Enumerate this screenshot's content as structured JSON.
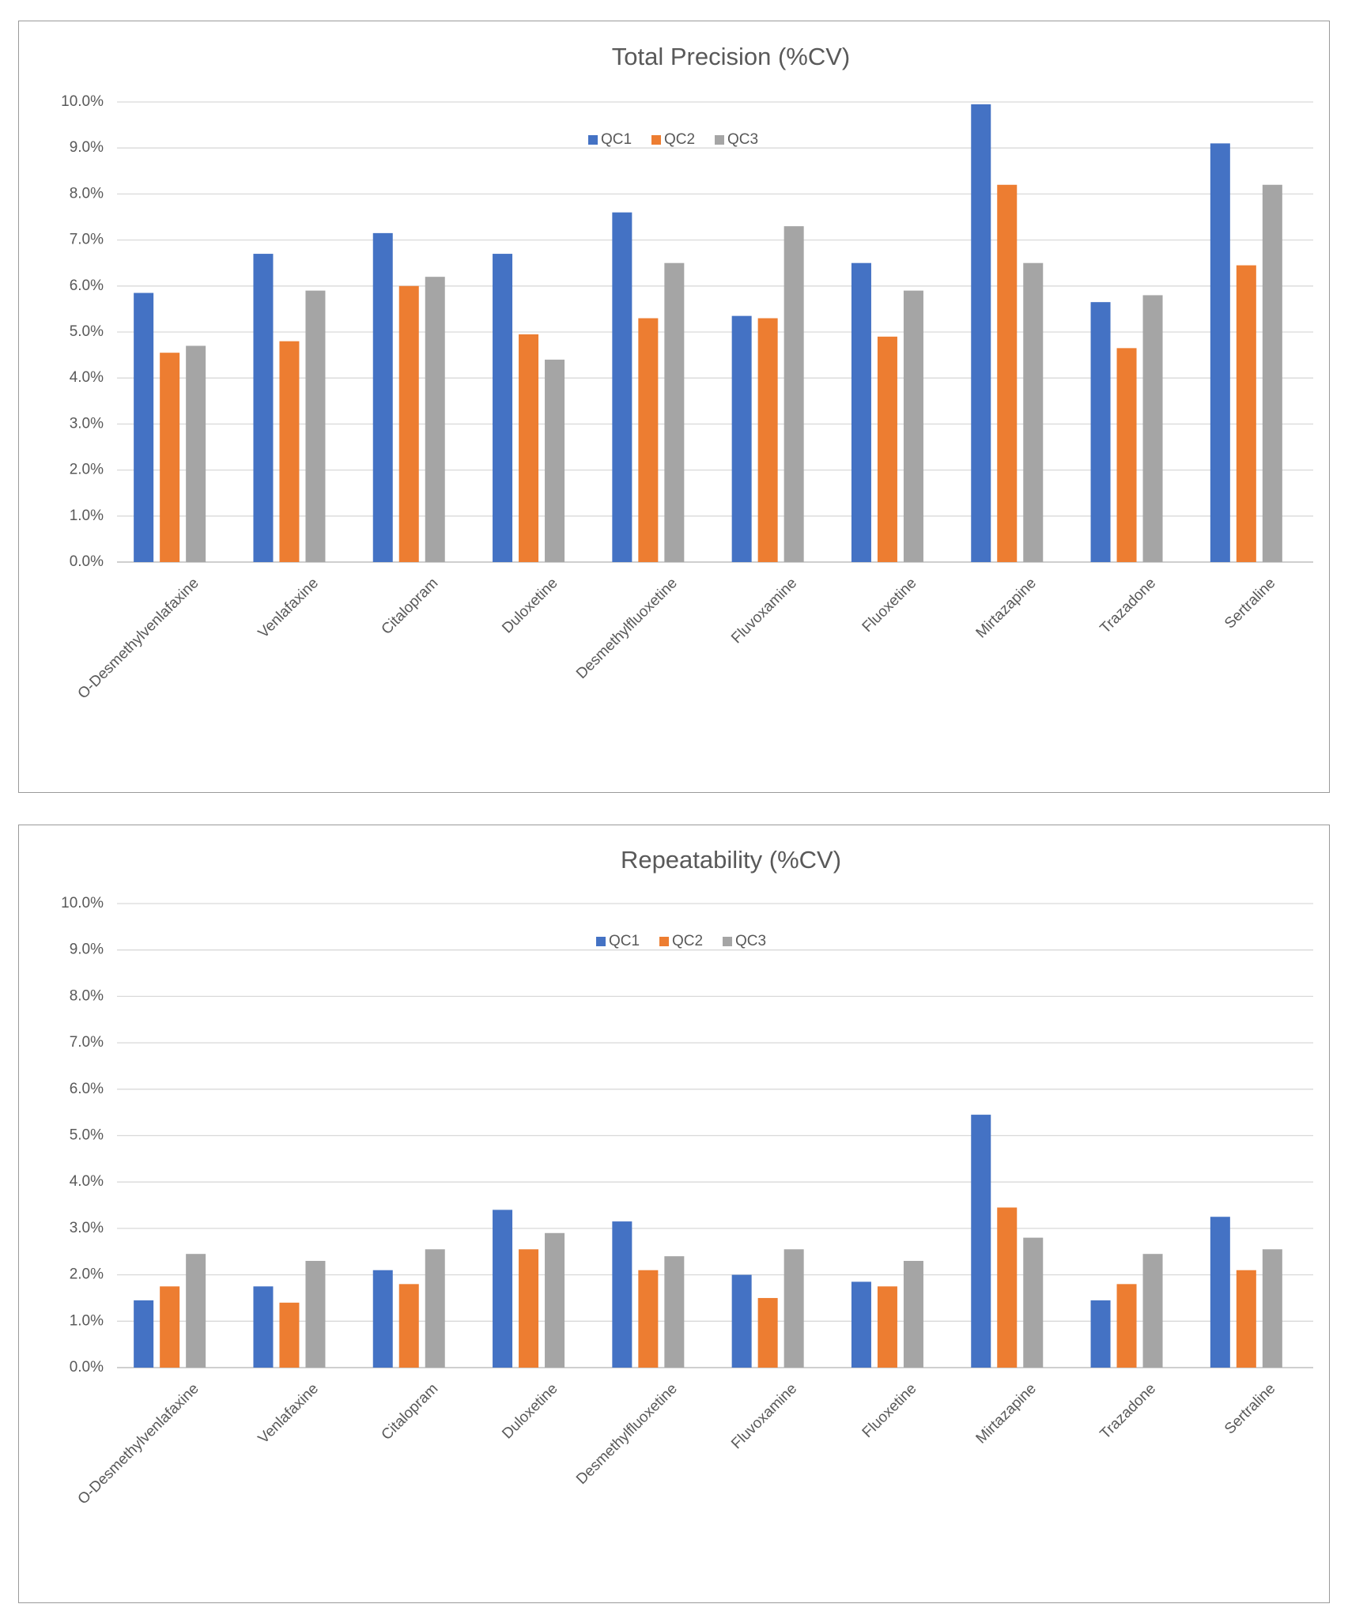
{
  "chart_data": [
    {
      "type": "bar",
      "title": "Total Precision (%CV)",
      "xlabel": "",
      "ylabel": "",
      "ylim": [
        0,
        10
      ],
      "yticks": [
        "0.0%",
        "1.0%",
        "2.0%",
        "3.0%",
        "4.0%",
        "5.0%",
        "6.0%",
        "7.0%",
        "8.0%",
        "9.0%",
        "10.0%"
      ],
      "legend_position": "top-center",
      "grid": true,
      "categories": [
        "O-Desmethylvenlafaxine",
        "Venlafaxine",
        "Citalopram",
        "Duloxetine",
        "Desmethylfluoxetine",
        "Fluvoxamine",
        "Fluoxetine",
        "Mirtazapine",
        "Trazadone",
        "Sertraline"
      ],
      "series": [
        {
          "name": "QC1",
          "color": "#4472c4",
          "values": [
            5.85,
            6.7,
            7.15,
            6.7,
            7.6,
            5.35,
            6.5,
            9.95,
            5.65,
            9.1
          ]
        },
        {
          "name": "QC2",
          "color": "#ed7d31",
          "values": [
            4.55,
            4.8,
            6.0,
            4.95,
            5.3,
            5.3,
            4.9,
            8.2,
            4.65,
            6.45
          ]
        },
        {
          "name": "QC3",
          "color": "#a5a5a5",
          "values": [
            4.7,
            5.9,
            6.2,
            4.4,
            6.5,
            7.3,
            5.9,
            6.5,
            5.8,
            8.2
          ]
        }
      ]
    },
    {
      "type": "bar",
      "title": "Repeatability (%CV)",
      "xlabel": "",
      "ylabel": "",
      "ylim": [
        0,
        10
      ],
      "yticks": [
        "0.0%",
        "1.0%",
        "2.0%",
        "3.0%",
        "4.0%",
        "5.0%",
        "6.0%",
        "7.0%",
        "8.0%",
        "9.0%",
        "10.0%"
      ],
      "legend_position": "top-center",
      "grid": true,
      "categories": [
        "O-Desmethylvenlafaxine",
        "Venlafaxine",
        "Citalopram",
        "Duloxetine",
        "Desmethylfluoxetine",
        "Fluvoxamine",
        "Fluoxetine",
        "Mirtazapine",
        "Trazadone",
        "Sertraline"
      ],
      "series": [
        {
          "name": "QC1",
          "color": "#4472c4",
          "values": [
            1.45,
            1.75,
            2.1,
            3.4,
            3.15,
            2.0,
            1.85,
            5.45,
            1.45,
            3.25
          ]
        },
        {
          "name": "QC2",
          "color": "#ed7d31",
          "values": [
            1.75,
            1.4,
            1.8,
            2.55,
            2.1,
            1.5,
            1.75,
            3.45,
            1.8,
            2.1
          ]
        },
        {
          "name": "QC3",
          "color": "#a5a5a5",
          "values": [
            2.45,
            2.3,
            2.55,
            2.9,
            2.4,
            2.55,
            2.3,
            2.8,
            2.45,
            2.55
          ]
        }
      ]
    }
  ]
}
